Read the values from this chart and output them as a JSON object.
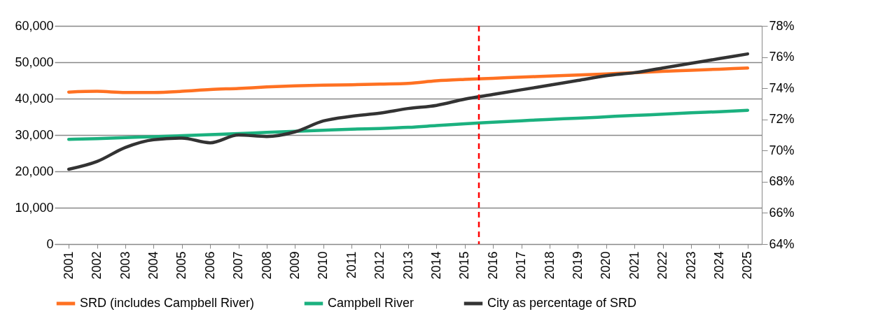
{
  "chart_data": {
    "type": "line",
    "x": [
      2001,
      2002,
      2003,
      2004,
      2005,
      2006,
      2007,
      2008,
      2009,
      2010,
      2011,
      2012,
      2013,
      2014,
      2015,
      2016,
      2017,
      2018,
      2019,
      2020,
      2021,
      2022,
      2023,
      2024,
      2025
    ],
    "xlim": [
      2000.5,
      2025.5
    ],
    "xticks": [
      2001,
      2002,
      2003,
      2004,
      2005,
      2006,
      2007,
      2008,
      2009,
      2010,
      2011,
      2012,
      2013,
      2014,
      2015,
      2016,
      2017,
      2018,
      2019,
      2020,
      2021,
      2022,
      2023,
      2024,
      2025
    ],
    "ylim": [
      0,
      60000
    ],
    "yticks": [
      0,
      {
        "value": 10000,
        "label": "10,000"
      },
      {
        "value": 20000,
        "label": "20,000"
      },
      {
        "value": 30000,
        "label": "30,000"
      },
      {
        "value": 40000,
        "label": "40,000"
      },
      {
        "value": 50000,
        "label": "50,000"
      },
      {
        "value": 60000,
        "label": "60,000"
      }
    ],
    "y2lim": [
      64,
      78
    ],
    "y2ticks": [
      {
        "value": 64,
        "label": "64%"
      },
      {
        "value": 66,
        "label": "66%"
      },
      {
        "value": 68,
        "label": "68%"
      },
      {
        "value": 70,
        "label": "70%"
      },
      {
        "value": 72,
        "label": "72%"
      },
      {
        "value": 74,
        "label": "74%"
      },
      {
        "value": 76,
        "label": "76%"
      },
      {
        "value": 78,
        "label": "78%"
      }
    ],
    "series": [
      {
        "name": "SRD (includes Campbell River)",
        "color": "#ff7122",
        "values": [
          41800,
          42000,
          41700,
          41700,
          42000,
          42500,
          42800,
          43200,
          43500,
          43700,
          43800,
          44000,
          44200,
          44900,
          45300,
          45600,
          45900,
          46200,
          46500,
          46800,
          47100,
          47500,
          47800,
          48100,
          48400
        ]
      },
      {
        "name": "Campbell River",
        "color": "#1bb17f",
        "values": [
          28800,
          29000,
          29300,
          29500,
          29800,
          30100,
          30400,
          30700,
          31000,
          31300,
          31600,
          31800,
          32100,
          32600,
          33100,
          33500,
          33900,
          34300,
          34600,
          35000,
          35400,
          35700,
          36100,
          36400,
          36800
        ]
      },
      {
        "name": "City as percentage of SRD",
        "color": "#333333",
        "axis": "y2",
        "values": [
          68.8,
          69.3,
          70.2,
          70.7,
          70.8,
          70.5,
          71.0,
          70.9,
          71.2,
          71.9,
          72.2,
          72.4,
          72.7,
          72.9,
          73.3,
          73.6,
          73.9,
          74.2,
          74.5,
          74.8,
          75.0,
          75.3,
          75.6,
          75.9,
          76.2
        ]
      }
    ],
    "ref_lines": [
      {
        "axis": "x",
        "value": 2015.5,
        "color": "#ff0000",
        "line_style": "dashed"
      }
    ],
    "grid": "y",
    "legend": "bottom",
    "marker": "none",
    "line_style": "solid"
  }
}
